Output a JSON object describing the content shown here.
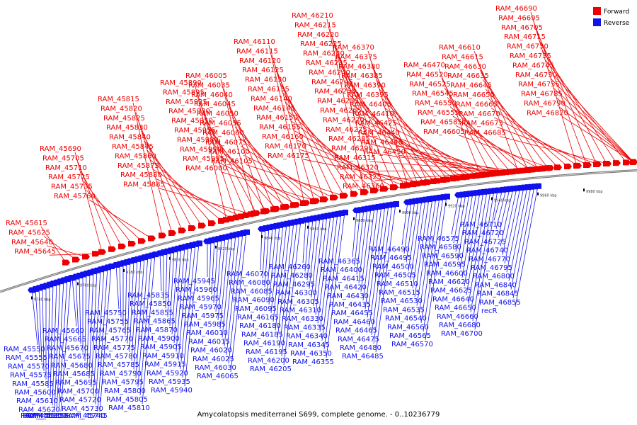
{
  "legend": {
    "forward_label": "Forward",
    "reverse_label": "Reverse",
    "forward_color": "#ee0000",
    "reverse_color": "#1111ee"
  },
  "caption": "Amycolatopsis mediterranei S699, complete genome. - 0..10236779",
  "strand_colors": {
    "forward": "#ee0000",
    "reverse": "#1111ee",
    "axis": "#777777"
  },
  "ticks": [
    "9740 kbp",
    "9760 kbp",
    "9780 kbp",
    "9800 kbp",
    "9820 kbp",
    "9840 kbp",
    "9860 kbp",
    "9880 kbp",
    "9900 kbp",
    "9920 kbp",
    "9940 kbp",
    "9960 kbp",
    "9980 kbp"
  ],
  "forward_genes": [
    "RAM_45615",
    "RAM_45625",
    "RAM_45640",
    "RAM_45645",
    "RAM_45690",
    "RAM_45705",
    "RAM_45710",
    "RAM_45725",
    "RAM_45735",
    "RAM_45760",
    "RAM_45815",
    "RAM_45820",
    "RAM_45825",
    "RAM_45830",
    "RAM_45840",
    "RAM_45845",
    "RAM_45860",
    "RAM_45875",
    "RAM_45880",
    "RAM_45885",
    "RAM_45890",
    "RAM_45895",
    "RAM_45925",
    "RAM_45930",
    "RAM_45950",
    "RAM_45955",
    "RAM_45980",
    "RAM_45990",
    "RAM_45995",
    "RAM_46000",
    "RAM_46005",
    "RAM_46035",
    "RAM_46040",
    "RAM_46045",
    "RAM_46050",
    "RAM_46055",
    "RAM_46060",
    "RAM_46075",
    "RAM_46100",
    "RAM_46105",
    "RAM_46110",
    "RAM_46115",
    "RAM_46120",
    "RAM_46125",
    "RAM_46130",
    "RAM_46135",
    "RAM_46140",
    "RAM_46145",
    "RAM_46150",
    "RAM_46155",
    "RAM_46160",
    "RAM_46170",
    "RAM_46175",
    "RAM_46210",
    "RAM_46215",
    "RAM_46220",
    "RAM_46225",
    "RAM_46230",
    "RAM_46235",
    "RAM_46240",
    "RAM_46245",
    "RAM_46250",
    "RAM_46255",
    "RAM_46265",
    "RAM_46270",
    "RAM_46275",
    "RAM_46285",
    "RAM_46290",
    "RAM_46315",
    "RAM_46320",
    "RAM_46325",
    "RAM_46360",
    "RAM_46370",
    "RAM_46375",
    "RAM_46380",
    "RAM_46385",
    "RAM_46390",
    "RAM_46395",
    "RAM_46405",
    "RAM_46410",
    "RAM_46425",
    "RAM_46440",
    "RAM_46445",
    "RAM_46450",
    "RAM_46470",
    "RAM_46520",
    "RAM_46525",
    "RAM_46545",
    "RAM_46550",
    "RAM_46555",
    "RAM_46585",
    "RAM_46605",
    "RAM_46610",
    "RAM_46615",
    "RAM_46630",
    "RAM_46635",
    "RAM_46645",
    "RAM_46655",
    "RAM_46665",
    "RAM_46670",
    "RAM_46675",
    "RAM_46685",
    "RAM_46690",
    "RAM_46695",
    "RAM_46705",
    "RAM_46715",
    "RAM_46730",
    "RAM_46735",
    "RAM_46745",
    "RAM_46750",
    "RAM_46755",
    "RAM_46785",
    "RAM_46790",
    "RAM_46820"
  ],
  "reverse_genes": [
    "RAM_45550",
    "RAM_45555",
    "RAM_45570",
    "RAM_45575",
    "RAM_45585",
    "RAM_45600",
    "RAM_45610",
    "RAM_45620",
    "RAM_45630",
    "RAM_45635",
    "RAM_45650",
    "RAM_45655",
    "RAM_45660",
    "RAM_45665",
    "RAM_45670",
    "RAM_45675",
    "RAM_45680",
    "RAM_45685",
    "RAM_45695",
    "RAM_45700",
    "RAM_45720",
    "RAM_45730",
    "RAM_45740",
    "RAM_45745",
    "RAM_45750",
    "RAM_45755",
    "RAM_45765",
    "RAM_45770",
    "RAM_45775",
    "RAM_45780",
    "RAM_45785",
    "RAM_45790",
    "RAM_45795",
    "RAM_45800",
    "RAM_45805",
    "RAM_45810",
    "RAM_45835",
    "RAM_45850",
    "RAM_45855",
    "RAM_45865",
    "RAM_45870",
    "RAM_45900",
    "RAM_45905",
    "RAM_45910",
    "RAM_45915",
    "RAM_45920",
    "RAM_45935",
    "RAM_45940",
    "RAM_45945",
    "RAM_45960",
    "RAM_45965",
    "RAM_45970",
    "RAM_45975",
    "RAM_45985",
    "RAM_46010",
    "RAM_46015",
    "RAM_46020",
    "RAM_46025",
    "RAM_46030",
    "RAM_46065",
    "RAM_46070",
    "RAM_46080",
    "RAM_46085",
    "RAM_46090",
    "RAM_46095",
    "RAM_46165",
    "RAM_46180",
    "RAM_46185",
    "RAM_46190",
    "RAM_46195",
    "RAM_46200",
    "RAM_46205",
    "RAM_46260",
    "RAM_46280",
    "RAM_46295",
    "RAM_46300",
    "RAM_46305",
    "RAM_46310",
    "RAM_46330",
    "RAM_46335",
    "RAM_46340",
    "RAM_46345",
    "RAM_46350",
    "RAM_46355",
    "RAM_46365",
    "RAM_46400",
    "RAM_46415",
    "RAM_46420",
    "RAM_46430",
    "RAM_46435",
    "RAM_46455",
    "RAM_46460",
    "RAM_46465",
    "RAM_46475",
    "RAM_46480",
    "RAM_46485",
    "RAM_46490",
    "RAM_46495",
    "RAM_46500",
    "RAM_46505",
    "RAM_46510",
    "RAM_46515",
    "RAM_46530",
    "RAM_46535",
    "RAM_46540",
    "RAM_46560",
    "RAM_46565",
    "RAM_46570",
    "RAM_46575",
    "RAM_46580",
    "RAM_46590",
    "RAM_46595",
    "RAM_46600",
    "RAM_46620",
    "RAM_46625",
    "RAM_46640",
    "RAM_46650",
    "RAM_46660",
    "RAM_46680",
    "RAM_46700",
    "RAM_46710",
    "RAM_46720",
    "RAM_46725",
    "RAM_46740",
    "RAM_46770",
    "RAM_46795",
    "RAM_46800",
    "RAM_46840",
    "RAM_46845",
    "RAM_46855",
    "recR"
  ]
}
